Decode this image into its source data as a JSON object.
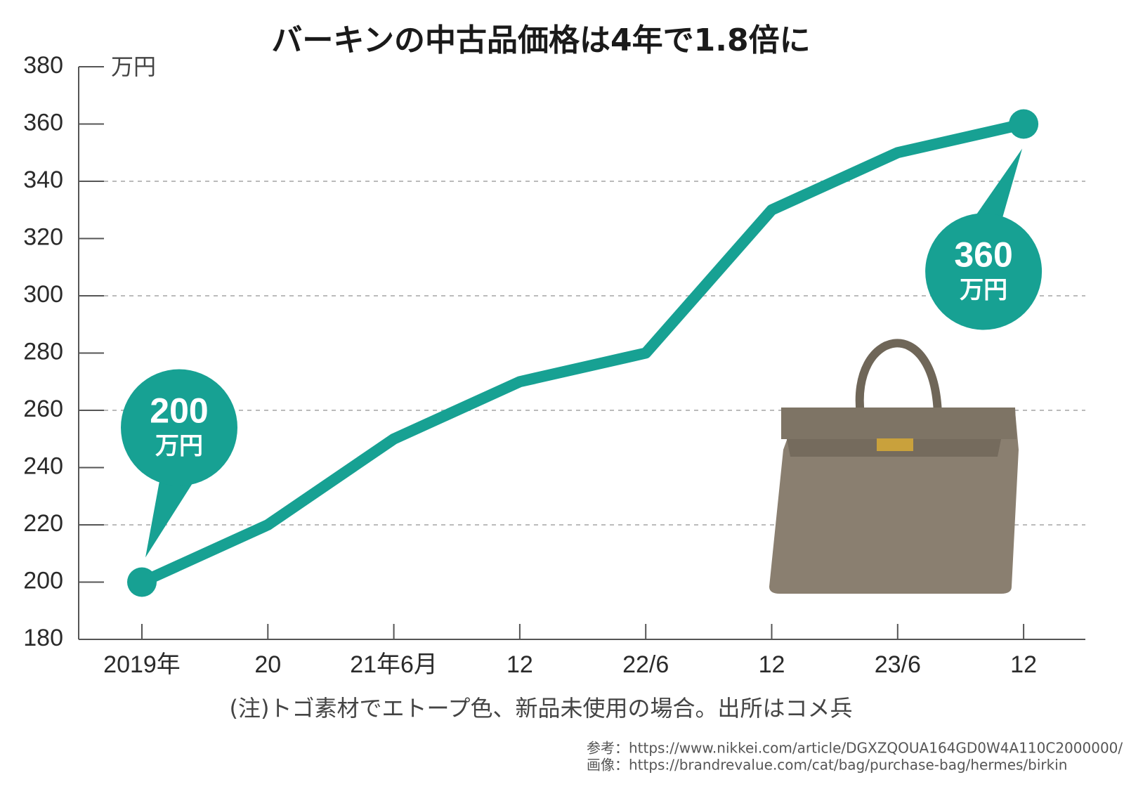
{
  "chart_data": {
    "type": "line",
    "title": "バーキンの中古品価格は4年で1.8倍に",
    "y_unit": "万円",
    "categories": [
      "2019年",
      "20",
      "21年6月",
      "12",
      "22/6",
      "12",
      "23/6",
      "12"
    ],
    "values": [
      200,
      220,
      250,
      270,
      280,
      330,
      350,
      360
    ],
    "color": "#17a193",
    "ylim": [
      180,
      380
    ],
    "yticks": [
      180,
      200,
      220,
      240,
      260,
      280,
      300,
      320,
      340,
      360,
      380
    ],
    "grid": true,
    "note": "(注)トゴ素材でエトープ色、新品未使用の場合。出所はコメ兵",
    "sources": [
      "参考：https://www.nikkei.com/article/DGXZQOUA164GD0W4A110C2000000/",
      "画像：https://brandrevalue.com/cat/bag/purchase-bag/hermes/birkin"
    ]
  }
}
